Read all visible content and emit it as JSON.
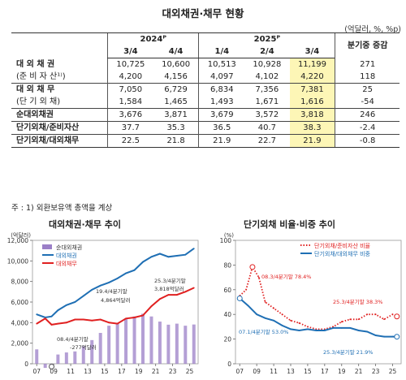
{
  "title": "대외채권·채무 현황",
  "unit": "(억달러, %, %p)",
  "table": {
    "year_headers": [
      "2024ᴾ",
      "2025ᴾ"
    ],
    "change_header": "분기중 증감",
    "quarters": [
      "3/4",
      "4/4",
      "1/4",
      "2/4",
      "3/4"
    ],
    "rows": [
      {
        "label": "대 외 채 권",
        "values": [
          "10,725",
          "10,600",
          "10,513",
          "10,928",
          "11,199"
        ],
        "change": "271",
        "bold": true
      },
      {
        "label": "(준 비 자 산¹⁾)",
        "values": [
          "4,200",
          "4,156",
          "4,097",
          "4,102",
          "4,220"
        ],
        "change": "118",
        "bold": false
      },
      {
        "label": "대 외 채 무",
        "values": [
          "7,050",
          "6,729",
          "6,834",
          "7,356",
          "7,381"
        ],
        "change": "25",
        "bold": true
      },
      {
        "label": "(단 기 외 채)",
        "values": [
          "1,584",
          "1,465",
          "1,493",
          "1,671",
          "1,616"
        ],
        "change": "-54",
        "bold": false
      },
      {
        "label": "순대외채권",
        "values": [
          "3,676",
          "3,871",
          "3,679",
          "3,572",
          "3,818"
        ],
        "change": "246",
        "bold": true
      },
      {
        "label": "단기외채/준비자산",
        "values": [
          "37.7",
          "35.3",
          "36.5",
          "40.7",
          "38.3"
        ],
        "change": "-2.4",
        "bold": true
      },
      {
        "label": "단기외채/대외채무",
        "values": [
          "22.5",
          "21.8",
          "21.9",
          "22.7",
          "21.9"
        ],
        "change": "-0.8",
        "bold": true
      }
    ]
  },
  "note": "주 : 1) 외환보유액 총액을 계상",
  "chart_data": [
    {
      "type": "line",
      "title": "대외채권·채무 추이",
      "ylabel": "(억달러)",
      "ylim": [
        0,
        12000
      ],
      "yticks": [
        "0",
        "2,000",
        "4,000",
        "6,000",
        "8,000",
        "10,000",
        "12,000"
      ],
      "xticks": [
        "07",
        "09",
        "11",
        "13",
        "15",
        "17",
        "19",
        "21",
        "23",
        "25"
      ],
      "grid": false,
      "legend_position": "top-left",
      "series": [
        {
          "name": "순대외채권",
          "kind": "bar",
          "color": "#9b7fc7",
          "points": [
            [
              2007.0,
              1400
            ],
            [
              2008.0,
              -400
            ],
            [
              2008.75,
              -277
            ],
            [
              2009.5,
              900
            ],
            [
              2010.5,
              1100
            ],
            [
              2011.5,
              1200
            ],
            [
              2012.5,
              1700
            ],
            [
              2013.5,
              2300
            ],
            [
              2014.5,
              3000
            ],
            [
              2015.5,
              3700
            ],
            [
              2016.5,
              3900
            ],
            [
              2017.5,
              4400
            ],
            [
              2018.5,
              4600
            ],
            [
              2019.5,
              4864
            ],
            [
              2020.5,
              4600
            ],
            [
              2021.5,
              4100
            ],
            [
              2022.5,
              3800
            ],
            [
              2023.5,
              3900
            ],
            [
              2024.5,
              3700
            ],
            [
              2025.5,
              3818
            ]
          ]
        },
        {
          "name": "대외채권",
          "kind": "line",
          "color": "#1f6fb4",
          "points": [
            [
              2007.0,
              4800
            ],
            [
              2008.0,
              4500
            ],
            [
              2008.75,
              4600
            ],
            [
              2009.5,
              5200
            ],
            [
              2010.5,
              5700
            ],
            [
              2011.5,
              6000
            ],
            [
              2012.5,
              6600
            ],
            [
              2013.5,
              7200
            ],
            [
              2014.5,
              7600
            ],
            [
              2015.5,
              7900
            ],
            [
              2016.5,
              8300
            ],
            [
              2017.5,
              8800
            ],
            [
              2018.5,
              9100
            ],
            [
              2019.5,
              9900
            ],
            [
              2020.5,
              10400
            ],
            [
              2021.5,
              10700
            ],
            [
              2022.5,
              10400
            ],
            [
              2023.5,
              10500
            ],
            [
              2024.5,
              10600
            ],
            [
              2025.5,
              11199
            ]
          ]
        },
        {
          "name": "대외채무",
          "kind": "line",
          "color": "#e02020",
          "points": [
            [
              2007.0,
              3900
            ],
            [
              2008.0,
              4400
            ],
            [
              2008.75,
              3800
            ],
            [
              2009.5,
              3900
            ],
            [
              2010.5,
              4000
            ],
            [
              2011.5,
              4300
            ],
            [
              2012.5,
              4300
            ],
            [
              2013.5,
              4200
            ],
            [
              2014.5,
              4300
            ],
            [
              2015.5,
              4000
            ],
            [
              2016.5,
              3900
            ],
            [
              2017.5,
              4400
            ],
            [
              2018.5,
              4500
            ],
            [
              2019.5,
              4700
            ],
            [
              2020.5,
              5600
            ],
            [
              2021.5,
              6300
            ],
            [
              2022.5,
              6700
            ],
            [
              2023.5,
              6700
            ],
            [
              2024.5,
              7000
            ],
            [
              2025.5,
              7381
            ]
          ]
        }
      ],
      "annotations": [
        {
          "text": "19.4/4분기말",
          "text2": "4,864억달러"
        },
        {
          "text": "25.3/4분기말",
          "text2": "3,818억달러"
        },
        {
          "text": "08.4/4분기말",
          "text2": "-277억달러"
        }
      ]
    },
    {
      "type": "line",
      "title": "단기외채 비율·비중 추이",
      "ylabel": "(%)",
      "ylim": [
        0,
        100
      ],
      "yticks": [
        "0",
        "20",
        "40",
        "60",
        "80",
        "100"
      ],
      "xticks": [
        "07",
        "09",
        "11",
        "13",
        "15",
        "17",
        "19",
        "21",
        "23",
        "25"
      ],
      "grid": false,
      "legend_position": "top-right",
      "series": [
        {
          "name": "단기외채/준비자산 비율",
          "kind": "dotted",
          "color": "#e02020",
          "points": [
            [
              2007.0,
              55
            ],
            [
              2007.75,
              60
            ],
            [
              2008.5,
              78.4
            ],
            [
              2009.25,
              70
            ],
            [
              2010.0,
              50
            ],
            [
              2011.0,
              45
            ],
            [
              2012.0,
              40
            ],
            [
              2013.0,
              35
            ],
            [
              2014.0,
              33
            ],
            [
              2015.0,
              30
            ],
            [
              2016.0,
              28
            ],
            [
              2017.0,
              28
            ],
            [
              2018.0,
              30
            ],
            [
              2019.0,
              34
            ],
            [
              2020.0,
              36
            ],
            [
              2021.0,
              36
            ],
            [
              2022.0,
              40
            ],
            [
              2023.0,
              40
            ],
            [
              2024.0,
              36
            ],
            [
              2025.0,
              40
            ],
            [
              2025.5,
              38.3
            ]
          ]
        },
        {
          "name": "단기외채/대외채무 비중",
          "kind": "line",
          "color": "#1f6fb4",
          "points": [
            [
              2007.0,
              53.0
            ],
            [
              2008.0,
              47
            ],
            [
              2009.0,
              40
            ],
            [
              2010.0,
              37
            ],
            [
              2011.0,
              35
            ],
            [
              2012.0,
              31
            ],
            [
              2013.0,
              28
            ],
            [
              2014.0,
              27
            ],
            [
              2015.0,
              28
            ],
            [
              2016.0,
              27
            ],
            [
              2017.0,
              27
            ],
            [
              2018.0,
              29
            ],
            [
              2019.0,
              29
            ],
            [
              2020.0,
              29
            ],
            [
              2021.0,
              27
            ],
            [
              2022.0,
              26
            ],
            [
              2023.0,
              23
            ],
            [
              2024.0,
              22
            ],
            [
              2025.0,
              22
            ],
            [
              2025.5,
              21.9
            ]
          ]
        }
      ],
      "annotations": [
        {
          "text": "08.3/4분기말  78.4%"
        },
        {
          "text": "07.1/4분기말  53.0%"
        },
        {
          "text": "25.3/4분기말  38.3%"
        },
        {
          "text": "25.3/4분기말  21.9%"
        }
      ]
    }
  ]
}
